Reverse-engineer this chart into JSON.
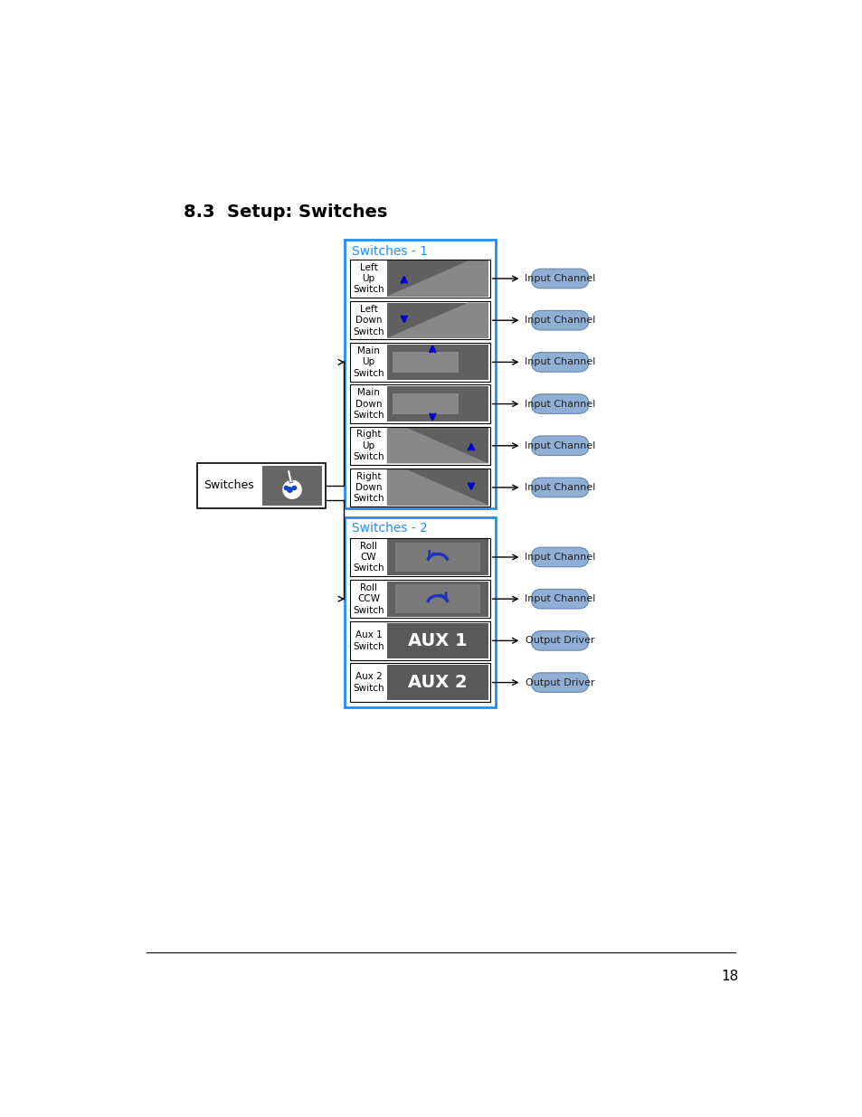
{
  "title": "8.3  Setup: Switches",
  "title_fontsize": 14,
  "title_fontweight": "bold",
  "page_number": "18",
  "switches_box_color": "#1e8fff",
  "input_channel_color": "#8fafd4",
  "output_driver_color": "#8fafd4",
  "switches_1_label": "Switches - 1",
  "switches_2_label": "Switches - 2",
  "switches_1_items": [
    {
      "label": "Left\nUp\nSwitch",
      "type": "left_up"
    },
    {
      "label": "Left\nDown\nSwitch",
      "type": "left_down"
    },
    {
      "label": "Main\nUp\nSwitch",
      "type": "main_up"
    },
    {
      "label": "Main\nDown\nSwitch",
      "type": "main_down"
    },
    {
      "label": "Right\nUp\nSwitch",
      "type": "right_up"
    },
    {
      "label": "Right\nDown\nSwitch",
      "type": "right_down"
    }
  ],
  "switches_2_items": [
    {
      "label": "Roll\nCW\nSwitch",
      "type": "roll_cw",
      "output": "Input Channel"
    },
    {
      "label": "Roll\nCCW\nSwitch",
      "type": "roll_ccw",
      "output": "Input Channel"
    },
    {
      "label": "Aux 1\nSwitch",
      "type": "aux1",
      "output": "Output Driver"
    },
    {
      "label": "Aux 2\nSwitch",
      "type": "aux2",
      "output": "Output Driver"
    }
  ],
  "dark_gray": "#606060",
  "med_gray": "#888888",
  "aux_bg": "#595959",
  "blue_color": "#0000cc"
}
